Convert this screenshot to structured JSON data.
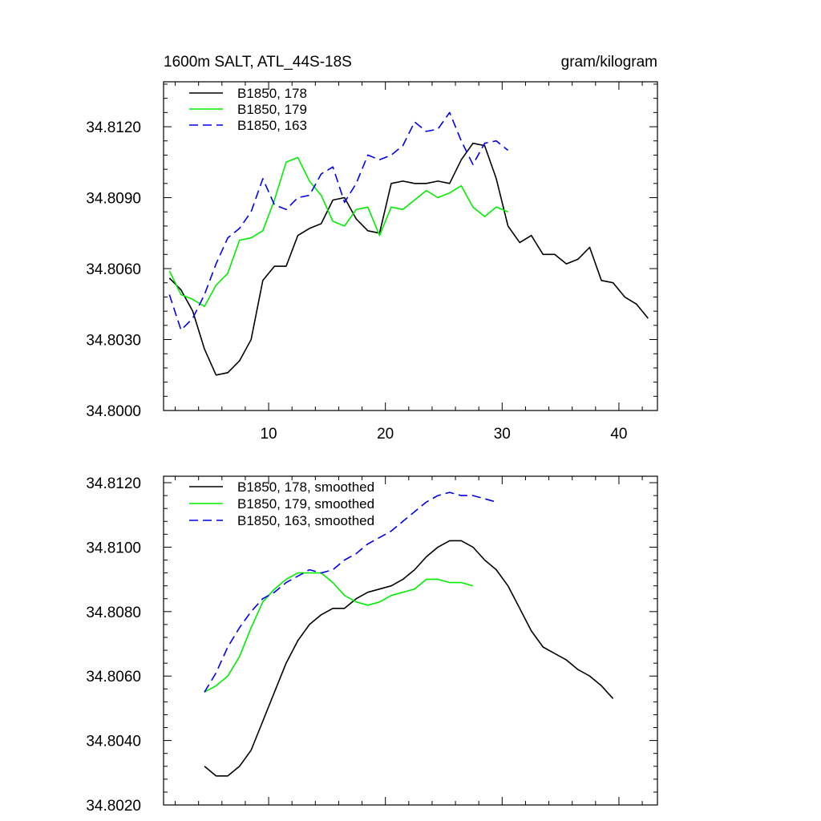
{
  "chart_data": [
    {
      "type": "line",
      "title_left": "1600m SALT, ATL_44S-18S",
      "title_right": "gram/kilogram",
      "xlim": [
        1,
        43.3
      ],
      "ylim": [
        34.8,
        34.8139
      ],
      "xticks": [
        10,
        20,
        30,
        40
      ],
      "xtick_labels": [
        "10",
        "20",
        "30",
        "40"
      ],
      "yticks": [
        34.8,
        34.803,
        34.806,
        34.809,
        34.812
      ],
      "ytick_labels": [
        "34.8000",
        "34.8030",
        "34.8060",
        "34.8090",
        "34.8120"
      ],
      "legend_position": "top-left",
      "series": [
        {
          "name": "B1850, 178",
          "color": "#000000",
          "dash": "solid",
          "x_start": 1.5,
          "values": [
            34.8056,
            34.8051,
            34.8042,
            34.8026,
            34.8015,
            34.8016,
            34.8021,
            34.803,
            34.8055,
            34.8061,
            34.8061,
            34.8074,
            34.8077,
            34.8079,
            34.8089,
            34.809,
            34.8081,
            34.8076,
            34.8075,
            34.8096,
            34.8097,
            34.8096,
            34.8096,
            34.8097,
            34.8096,
            34.8106,
            34.8113,
            34.8112,
            34.8098,
            34.8078,
            34.8071,
            34.8074,
            34.8066,
            34.8066,
            34.8062,
            34.8064,
            34.8069,
            34.8055,
            34.8054,
            34.8048,
            34.8045,
            34.8039
          ]
        },
        {
          "name": "B1850, 179",
          "color": "#00ee00",
          "dash": "solid",
          "x_start": 1.5,
          "values": [
            34.8059,
            34.8049,
            34.8047,
            34.8044,
            34.8053,
            34.8058,
            34.8072,
            34.8073,
            34.8076,
            34.8089,
            34.8105,
            34.8107,
            34.8097,
            34.8091,
            34.808,
            34.8078,
            34.8085,
            34.8086,
            34.8074,
            34.8086,
            34.8085,
            34.8089,
            34.8093,
            34.809,
            34.8092,
            34.8095,
            34.8086,
            34.8082,
            34.8086,
            34.8084
          ]
        },
        {
          "name": "B1850, 163",
          "color": "#0000ee",
          "dash": "dashed",
          "x_start": 1.5,
          "values": [
            34.8049,
            34.8034,
            34.8039,
            34.8049,
            34.8062,
            34.8073,
            34.8077,
            34.8084,
            34.8098,
            34.8087,
            34.8085,
            34.809,
            34.8091,
            34.81,
            34.8103,
            34.8088,
            34.8096,
            34.8108,
            34.8106,
            34.8108,
            34.8112,
            34.8122,
            34.8118,
            34.8119,
            34.8126,
            34.8114,
            34.8104,
            34.8113,
            34.8114,
            34.811
          ]
        }
      ]
    },
    {
      "type": "line",
      "xlim": [
        1,
        43.3
      ],
      "ylim": [
        34.802,
        34.8122
      ],
      "xticks": [
        10,
        20,
        30,
        40
      ],
      "yticks": [
        34.802,
        34.804,
        34.806,
        34.808,
        34.81,
        34.812
      ],
      "ytick_labels": [
        "34.8020",
        "34.8040",
        "34.8060",
        "34.8080",
        "34.8100",
        "34.8120"
      ],
      "legend_position": "top-left",
      "series": [
        {
          "name": "B1850, 178, smoothed",
          "color": "#000000",
          "dash": "solid",
          "x_start": 4.5,
          "values": [
            34.8032,
            34.8029,
            34.8029,
            34.8032,
            34.8037,
            34.8046,
            34.8055,
            34.8064,
            34.8071,
            34.8076,
            34.8079,
            34.8081,
            34.8081,
            34.8084,
            34.8086,
            34.8087,
            34.8088,
            34.809,
            34.8093,
            34.8097,
            34.81,
            34.8102,
            34.8102,
            34.81,
            34.8096,
            34.8093,
            34.8088,
            34.8081,
            34.8074,
            34.8069,
            34.8067,
            34.8065,
            34.8062,
            34.806,
            34.8057,
            34.8053
          ]
        },
        {
          "name": "B1850, 179, smoothed",
          "color": "#00ee00",
          "dash": "solid",
          "x_start": 4.5,
          "values": [
            34.8055,
            34.8057,
            34.806,
            34.8066,
            34.8075,
            34.8083,
            34.8087,
            34.809,
            34.8092,
            34.8092,
            34.8092,
            34.8089,
            34.8085,
            34.8083,
            34.8082,
            34.8083,
            34.8085,
            34.8086,
            34.8087,
            34.809,
            34.809,
            34.8089,
            34.8089,
            34.8088
          ]
        },
        {
          "name": "B1850, 163, smoothed",
          "color": "#0000ee",
          "dash": "dashed",
          "x_start": 4.5,
          "values": [
            34.8055,
            34.8061,
            34.8069,
            34.8075,
            34.808,
            34.8084,
            34.8086,
            34.8089,
            34.8091,
            34.8093,
            34.8092,
            34.8093,
            34.8096,
            34.8098,
            34.8101,
            34.8103,
            34.8105,
            34.8108,
            34.8111,
            34.8114,
            34.8116,
            34.8117,
            34.8116,
            34.8116,
            34.8115,
            34.8114
          ]
        }
      ]
    }
  ]
}
